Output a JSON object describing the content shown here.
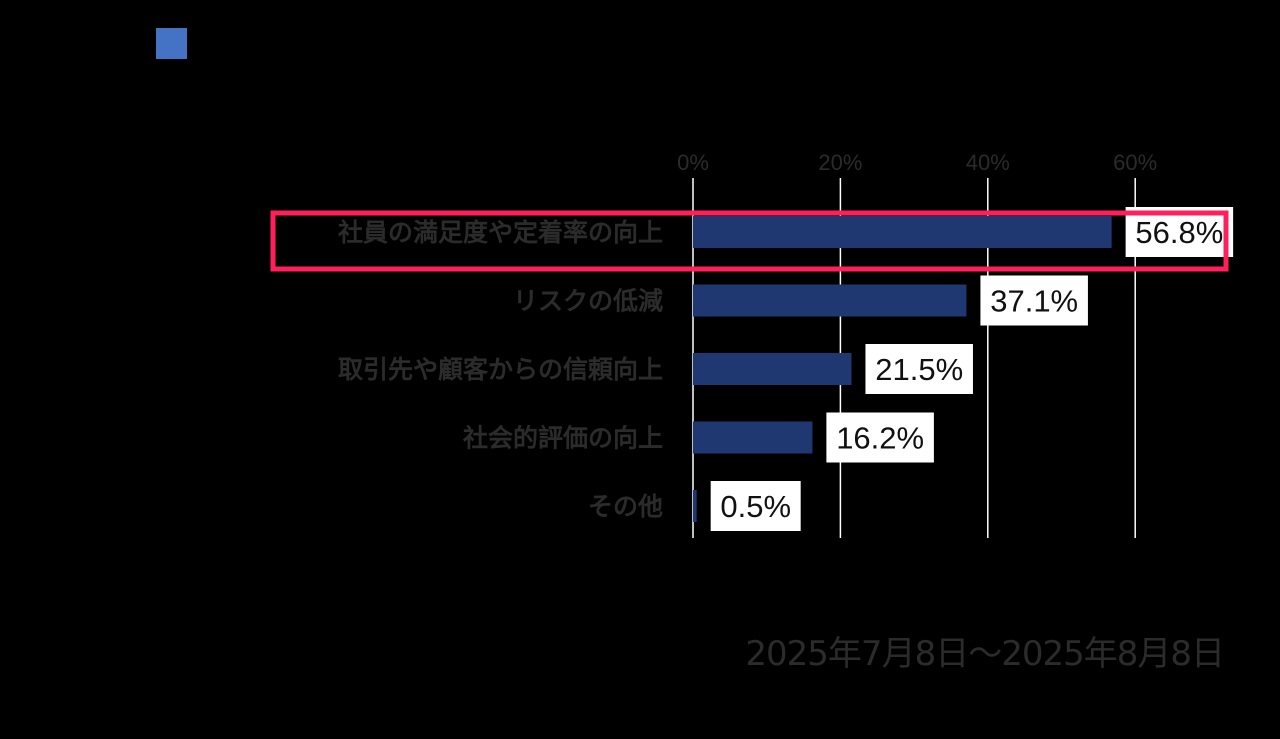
{
  "colors": {
    "background": "#000000",
    "bar": "#1f3872",
    "legend_swatch": "#4472c4",
    "highlight": "#ff1f5a",
    "label_text": "#2b2b2b",
    "tick_text": "#2b2b2b",
    "grid": "#ffffff"
  },
  "legend": {
    "icon": "blue-square"
  },
  "footer": {
    "date_range": "2025年7月8日～2025年8月8日"
  },
  "chart_data": {
    "type": "bar",
    "orientation": "horizontal",
    "categories": [
      "社員の満足度や定着率の向上",
      "リスクの低減",
      "取引先や顧客からの信頼向上",
      "社会的評価の向上",
      "その他"
    ],
    "values": [
      56.8,
      37.1,
      21.5,
      16.2,
      0.5
    ],
    "data_labels": [
      "56.8%",
      "37.1%",
      "21.5%",
      "16.2%",
      "0.5%"
    ],
    "xlim": [
      0,
      60
    ],
    "x_ticks": [
      "0%",
      "20%",
      "40%",
      "60%"
    ],
    "grid": true,
    "highlighted_category": "社員の満足度や定着率の向上"
  }
}
